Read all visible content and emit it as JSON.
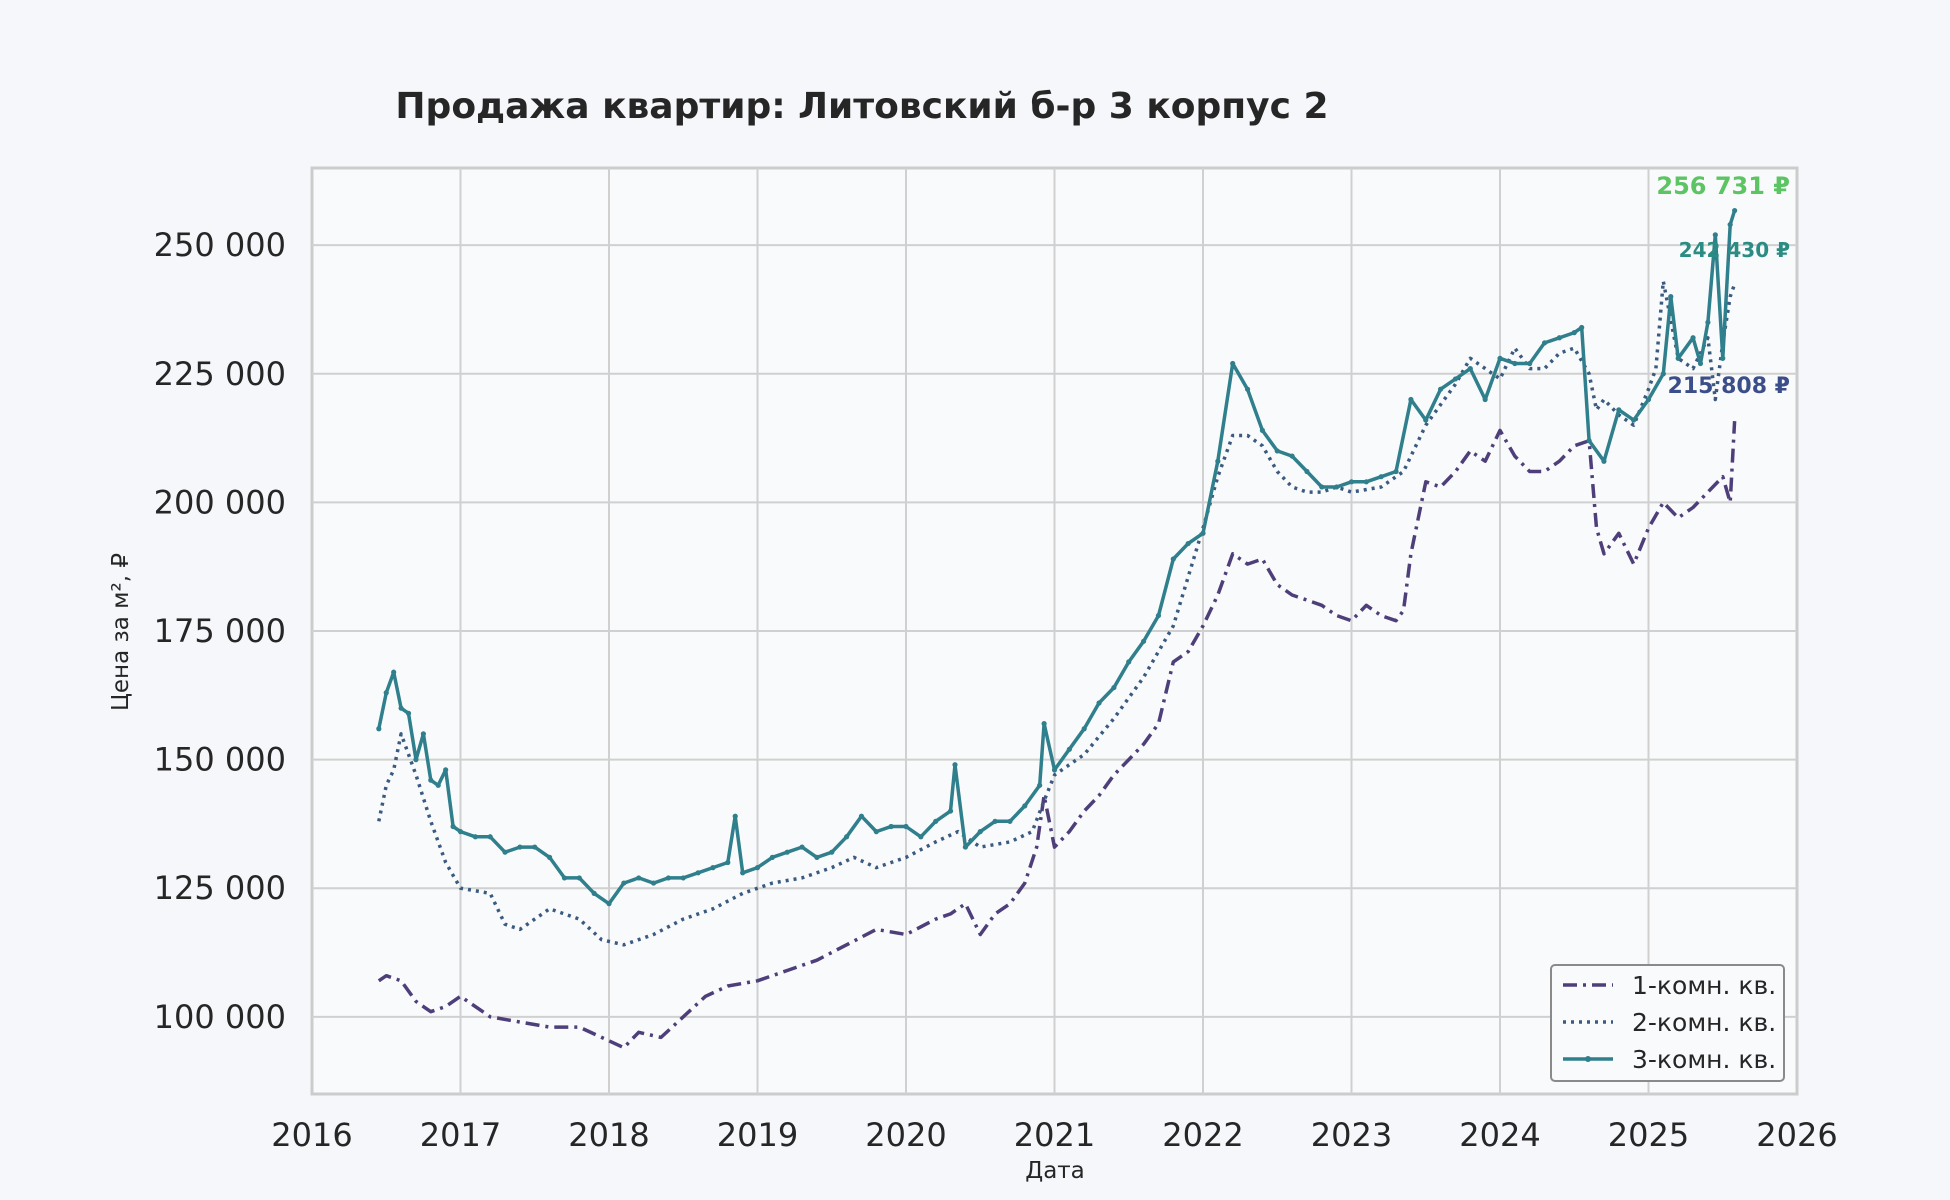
{
  "chart_data": {
    "type": "line",
    "title": "Продажа квартир: Литовский б-р 3 корпус 2",
    "xlabel": "Дата",
    "ylabel": "Цена за м², ₽",
    "xlim": [
      2016.0,
      2026.0
    ],
    "ylim": [
      85000,
      265000
    ],
    "x_ticks": [
      2016,
      2017,
      2018,
      2019,
      2020,
      2021,
      2022,
      2023,
      2024,
      2025,
      2026
    ],
    "x_tick_labels": [
      "2016",
      "2017",
      "2018",
      "2019",
      "2020",
      "2021",
      "2022",
      "2023",
      "2024",
      "2025",
      "2026"
    ],
    "y_ticks": [
      100000,
      125000,
      150000,
      175000,
      200000,
      225000,
      250000
    ],
    "y_tick_labels": [
      "100 000",
      "125 000",
      "150 000",
      "175 000",
      "200 000",
      "225 000",
      "250 000"
    ],
    "grid": true,
    "legend_position": "bottom-right",
    "series": [
      {
        "name": "1-комн. кв.",
        "style": "dashdot",
        "color": "#4e3f7a",
        "x": [
          2016.45,
          2016.5,
          2016.6,
          2016.7,
          2016.8,
          2016.9,
          2017.0,
          2017.2,
          2017.4,
          2017.6,
          2017.8,
          2017.95,
          2018.1,
          2018.2,
          2018.35,
          2018.5,
          2018.65,
          2018.8,
          2019.0,
          2019.2,
          2019.4,
          2019.6,
          2019.8,
          2020.0,
          2020.2,
          2020.3,
          2020.4,
          2020.5,
          2020.6,
          2020.7,
          2020.8,
          2020.88,
          2020.93,
          2021.0,
          2021.1,
          2021.2,
          2021.3,
          2021.4,
          2021.5,
          2021.6,
          2021.7,
          2021.8,
          2021.9,
          2022.0,
          2022.1,
          2022.2,
          2022.3,
          2022.4,
          2022.5,
          2022.6,
          2022.7,
          2022.8,
          2022.9,
          2023.0,
          2023.1,
          2023.2,
          2023.3,
          2023.35,
          2023.4,
          2023.5,
          2023.6,
          2023.7,
          2023.8,
          2023.9,
          2024.0,
          2024.1,
          2024.2,
          2024.3,
          2024.4,
          2024.5,
          2024.6,
          2024.65,
          2024.7,
          2024.8,
          2024.9,
          2025.0,
          2025.1,
          2025.2,
          2025.3,
          2025.4,
          2025.5,
          2025.55,
          2025.58
        ],
        "y": [
          107000,
          108000,
          107000,
          103000,
          101000,
          102000,
          104000,
          100000,
          99000,
          98000,
          98000,
          96000,
          94000,
          97000,
          96000,
          100000,
          104000,
          106000,
          107000,
          109000,
          111000,
          114000,
          117000,
          116000,
          119000,
          120000,
          122000,
          116000,
          120000,
          122000,
          126000,
          133000,
          143000,
          133000,
          136000,
          140000,
          143000,
          147000,
          150000,
          153000,
          157000,
          169000,
          171000,
          176000,
          182000,
          190000,
          188000,
          189000,
          184000,
          182000,
          181000,
          180000,
          178000,
          177000,
          180000,
          178000,
          177000,
          179000,
          190000,
          204000,
          203000,
          206000,
          210000,
          208000,
          214000,
          209000,
          206000,
          206000,
          208000,
          211000,
          212000,
          195000,
          190000,
          194000,
          188000,
          195000,
          200000,
          197000,
          199000,
          202000,
          205000,
          200000,
          215808
        ]
      },
      {
        "name": "2-комн. кв.",
        "style": "dotted",
        "color": "#3b5a80",
        "x": [
          2016.45,
          2016.5,
          2016.55,
          2016.6,
          2016.7,
          2016.8,
          2016.9,
          2017.0,
          2017.2,
          2017.3,
          2017.4,
          2017.6,
          2017.8,
          2017.95,
          2018.1,
          2018.3,
          2018.5,
          2018.7,
          2018.9,
          2019.1,
          2019.3,
          2019.5,
          2019.65,
          2019.8,
          2020.0,
          2020.2,
          2020.35,
          2020.5,
          2020.7,
          2020.85,
          2020.93,
          2021.0,
          2021.2,
          2021.4,
          2021.6,
          2021.8,
          2022.0,
          2022.1,
          2022.2,
          2022.3,
          2022.4,
          2022.5,
          2022.6,
          2022.7,
          2022.8,
          2022.9,
          2023.0,
          2023.2,
          2023.35,
          2023.5,
          2023.6,
          2023.7,
          2023.8,
          2023.9,
          2024.0,
          2024.1,
          2024.2,
          2024.3,
          2024.4,
          2024.5,
          2024.6,
          2024.65,
          2024.7,
          2024.8,
          2024.9,
          2025.0,
          2025.05,
          2025.1,
          2025.2,
          2025.3,
          2025.4,
          2025.45,
          2025.5,
          2025.55,
          2025.58
        ],
        "y": [
          138000,
          145000,
          148000,
          155000,
          147000,
          138000,
          130000,
          125000,
          124000,
          118000,
          117000,
          121000,
          119000,
          115000,
          114000,
          116000,
          119000,
          121000,
          124000,
          126000,
          127000,
          129000,
          131000,
          129000,
          131000,
          134000,
          136000,
          133000,
          134000,
          136000,
          142000,
          147000,
          151000,
          158000,
          166000,
          176000,
          195000,
          205000,
          213000,
          213000,
          211000,
          206000,
          203000,
          202000,
          202000,
          203000,
          202000,
          203000,
          206000,
          215000,
          219000,
          223000,
          228000,
          226000,
          224000,
          230000,
          226000,
          226000,
          229000,
          230000,
          225000,
          218000,
          220000,
          217000,
          215000,
          222000,
          226000,
          243000,
          228000,
          226000,
          232000,
          220000,
          231000,
          240000,
          242430
        ]
      },
      {
        "name": "3-комн. кв.",
        "style": "solid-markers",
        "color": "#2f7f8c",
        "x": [
          2016.45,
          2016.5,
          2016.55,
          2016.6,
          2016.65,
          2016.7,
          2016.75,
          2016.8,
          2016.85,
          2016.9,
          2016.95,
          2017.0,
          2017.1,
          2017.2,
          2017.3,
          2017.4,
          2017.5,
          2017.6,
          2017.7,
          2017.8,
          2017.9,
          2018.0,
          2018.1,
          2018.2,
          2018.3,
          2018.4,
          2018.5,
          2018.6,
          2018.7,
          2018.8,
          2018.85,
          2018.9,
          2019.0,
          2019.1,
          2019.2,
          2019.3,
          2019.4,
          2019.5,
          2019.6,
          2019.7,
          2019.8,
          2019.9,
          2020.0,
          2020.1,
          2020.2,
          2020.3,
          2020.33,
          2020.4,
          2020.5,
          2020.6,
          2020.7,
          2020.8,
          2020.9,
          2020.93,
          2021.0,
          2021.1,
          2021.2,
          2021.3,
          2021.4,
          2021.5,
          2021.6,
          2021.7,
          2021.8,
          2021.9,
          2022.0,
          2022.1,
          2022.2,
          2022.3,
          2022.4,
          2022.5,
          2022.6,
          2022.7,
          2022.8,
          2022.9,
          2023.0,
          2023.1,
          2023.2,
          2023.3,
          2023.4,
          2023.5,
          2023.6,
          2023.7,
          2023.8,
          2023.9,
          2024.0,
          2024.1,
          2024.2,
          2024.3,
          2024.4,
          2024.5,
          2024.55,
          2024.6,
          2024.7,
          2024.8,
          2024.9,
          2025.0,
          2025.1,
          2025.15,
          2025.2,
          2025.3,
          2025.35,
          2025.4,
          2025.45,
          2025.5,
          2025.55,
          2025.58
        ],
        "y": [
          156000,
          163000,
          167000,
          160000,
          159000,
          150000,
          155000,
          146000,
          145000,
          148000,
          137000,
          136000,
          135000,
          135000,
          132000,
          133000,
          133000,
          131000,
          127000,
          127000,
          124000,
          122000,
          126000,
          127000,
          126000,
          127000,
          127000,
          128000,
          129000,
          130000,
          139000,
          128000,
          129000,
          131000,
          132000,
          133000,
          131000,
          132000,
          135000,
          139000,
          136000,
          137000,
          137000,
          135000,
          138000,
          140000,
          149000,
          133000,
          136000,
          138000,
          138000,
          141000,
          145000,
          157000,
          148000,
          152000,
          156000,
          161000,
          164000,
          169000,
          173000,
          178000,
          189000,
          192000,
          194000,
          208000,
          227000,
          222000,
          214000,
          210000,
          209000,
          206000,
          203000,
          203000,
          204000,
          204000,
          205000,
          206000,
          220000,
          216000,
          222000,
          224000,
          226000,
          220000,
          228000,
          227000,
          227000,
          231000,
          232000,
          233000,
          234000,
          212000,
          208000,
          218000,
          216000,
          220000,
          225000,
          240000,
          228000,
          232000,
          227000,
          235000,
          252000,
          228000,
          254000,
          256731
        ]
      }
    ],
    "end_labels": [
      {
        "text": "256 731 ₽",
        "color": "#5cc463"
      },
      {
        "text": "242 430 ₽",
        "color": "#2b8c84"
      },
      {
        "text": "215 808 ₽",
        "color": "#3b4e8a"
      }
    ]
  }
}
